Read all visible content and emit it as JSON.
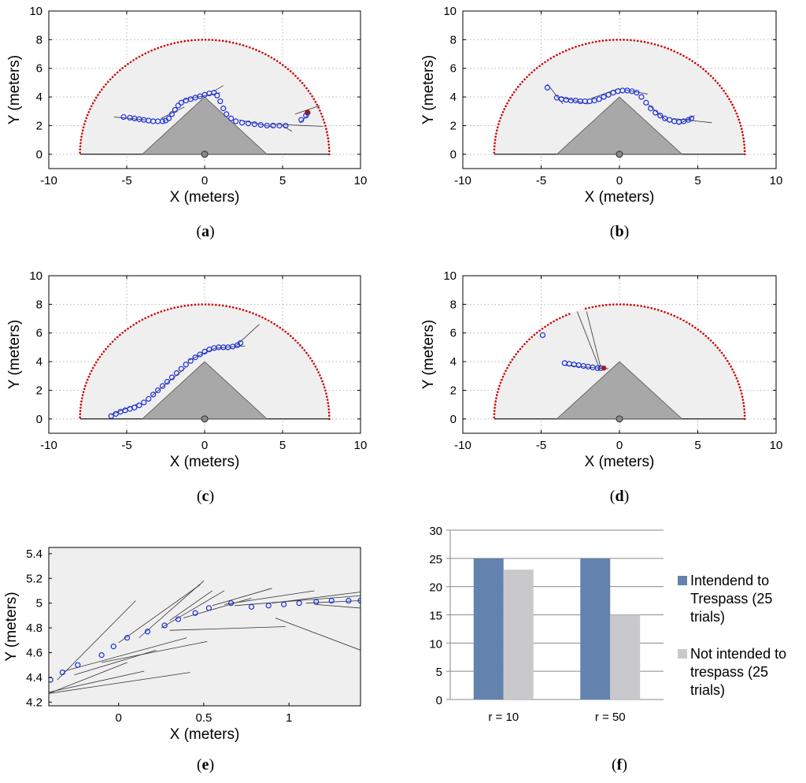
{
  "panels": [
    {
      "id": "a",
      "label": "a",
      "type": "scatter",
      "xlabel": "X (meters)",
      "ylabel": "Y (meters)",
      "xlim": [
        -10,
        10
      ],
      "ylim": [
        -1,
        10
      ],
      "xticks": [
        -10,
        -5,
        0,
        5,
        10
      ],
      "yticks": [
        0,
        2,
        4,
        6,
        8,
        10
      ],
      "sensor_radius": 8,
      "obstacle": [
        [
          -4,
          0
        ],
        [
          0,
          4
        ],
        [
          4,
          0
        ]
      ],
      "points": [
        [
          -5.2,
          2.6
        ],
        [
          -4.8,
          2.55
        ],
        [
          -4.5,
          2.5
        ],
        [
          -4.2,
          2.45
        ],
        [
          -3.9,
          2.4
        ],
        [
          -3.6,
          2.35
        ],
        [
          -3.3,
          2.3
        ],
        [
          -3.0,
          2.3
        ],
        [
          -2.7,
          2.3
        ],
        [
          -2.5,
          2.35
        ],
        [
          -2.3,
          2.5
        ],
        [
          -2.1,
          2.8
        ],
        [
          -1.9,
          3.1
        ],
        [
          -1.7,
          3.4
        ],
        [
          -1.5,
          3.6
        ],
        [
          -1.2,
          3.75
        ],
        [
          -0.9,
          3.85
        ],
        [
          -0.6,
          3.95
        ],
        [
          -0.3,
          4.05
        ],
        [
          0.0,
          4.15
        ],
        [
          0.3,
          4.25
        ],
        [
          0.6,
          4.3
        ],
        [
          0.8,
          4.1
        ],
        [
          1.0,
          3.7
        ],
        [
          1.2,
          3.2
        ],
        [
          1.4,
          2.8
        ],
        [
          1.7,
          2.5
        ],
        [
          2.0,
          2.3
        ],
        [
          2.4,
          2.2
        ],
        [
          2.8,
          2.15
        ],
        [
          3.2,
          2.1
        ],
        [
          3.6,
          2.05
        ],
        [
          4.0,
          2.0
        ],
        [
          4.4,
          2.0
        ],
        [
          4.8,
          2.0
        ],
        [
          5.2,
          2.0
        ],
        [
          6.2,
          2.4
        ],
        [
          6.5,
          2.7
        ],
        [
          6.6,
          2.9
        ]
      ],
      "vectors": [
        [
          [
            -5.8,
            2.6
          ],
          [
            -3.8,
            2.4
          ]
        ],
        [
          [
            -2.8,
            2.5
          ],
          [
            -1.3,
            3.3
          ]
        ],
        [
          [
            -1.4,
            3.8
          ],
          [
            1.0,
            4.3
          ]
        ],
        [
          [
            0.6,
            4.4
          ],
          [
            1.2,
            4.8
          ]
        ],
        [
          [
            2.2,
            2.4
          ],
          [
            4.4,
            1.9
          ]
        ],
        [
          [
            4.2,
            2.1
          ],
          [
            7.6,
            1.95
          ]
        ],
        [
          [
            5.0,
            2.0
          ],
          [
            5.6,
            1.6
          ]
        ],
        [
          [
            5.8,
            2.8
          ],
          [
            7.4,
            3.4
          ]
        ],
        [
          [
            6.1,
            2.2
          ],
          [
            6.8,
            2.9
          ]
        ]
      ],
      "end_marker": [
        6.6,
        2.95
      ],
      "missing_arc": []
    },
    {
      "id": "b",
      "label": "b",
      "type": "scatter",
      "xlabel": "X (meters)",
      "ylabel": "Y (meters)",
      "xlim": [
        -10,
        10
      ],
      "ylim": [
        -1,
        10
      ],
      "xticks": [
        -10,
        -5,
        0,
        5,
        10
      ],
      "yticks": [
        0,
        2,
        4,
        6,
        8,
        10
      ],
      "sensor_radius": 8,
      "obstacle": [
        [
          -4,
          0
        ],
        [
          0,
          4
        ],
        [
          4,
          0
        ]
      ],
      "points": [
        [
          -4.6,
          4.65
        ],
        [
          -4.0,
          3.95
        ],
        [
          -3.7,
          3.85
        ],
        [
          -3.4,
          3.8
        ],
        [
          -3.1,
          3.75
        ],
        [
          -2.8,
          3.75
        ],
        [
          -2.5,
          3.7
        ],
        [
          -2.2,
          3.7
        ],
        [
          -1.9,
          3.7
        ],
        [
          -1.6,
          3.75
        ],
        [
          -1.3,
          3.85
        ],
        [
          -1.0,
          4.0
        ],
        [
          -0.7,
          4.15
        ],
        [
          -0.4,
          4.3
        ],
        [
          -0.1,
          4.4
        ],
        [
          0.2,
          4.45
        ],
        [
          0.5,
          4.45
        ],
        [
          0.8,
          4.4
        ],
        [
          1.1,
          4.3
        ],
        [
          1.4,
          4.0
        ],
        [
          1.7,
          3.6
        ],
        [
          2.0,
          3.2
        ],
        [
          2.3,
          2.9
        ],
        [
          2.6,
          2.7
        ],
        [
          2.9,
          2.5
        ],
        [
          3.2,
          2.4
        ],
        [
          3.5,
          2.3
        ],
        [
          3.8,
          2.25
        ],
        [
          4.1,
          2.3
        ],
        [
          4.4,
          2.4
        ],
        [
          4.6,
          2.5
        ]
      ],
      "vectors": [
        [
          [
            -4.6,
            4.9
          ],
          [
            -3.6,
            3.5
          ]
        ],
        [
          [
            -3.8,
            4.0
          ],
          [
            -2.0,
            3.5
          ]
        ],
        [
          [
            -1.8,
            3.9
          ],
          [
            0.0,
            4.6
          ]
        ],
        [
          [
            0.3,
            4.5
          ],
          [
            1.8,
            4.2
          ]
        ],
        [
          [
            1.8,
            3.5
          ],
          [
            3.2,
            2.2
          ]
        ],
        [
          [
            3.4,
            2.5
          ],
          [
            5.9,
            2.2
          ]
        ],
        [
          [
            3.8,
            2.1
          ],
          [
            4.8,
            2.7
          ]
        ]
      ],
      "end_marker": [],
      "missing_arc": []
    },
    {
      "id": "c",
      "label": "c",
      "type": "scatter",
      "xlabel": "X (meters)",
      "ylabel": "Y (meters)",
      "xlim": [
        -10,
        10
      ],
      "ylim": [
        -1,
        10
      ],
      "xticks": [
        -10,
        -5,
        0,
        5,
        10
      ],
      "yticks": [
        0,
        2,
        4,
        6,
        8,
        10
      ],
      "sensor_radius": 8,
      "obstacle": [
        [
          -4,
          0
        ],
        [
          0,
          4
        ],
        [
          4,
          0
        ]
      ],
      "points": [
        [
          -6.0,
          0.2
        ],
        [
          -5.7,
          0.35
        ],
        [
          -5.4,
          0.5
        ],
        [
          -5.1,
          0.6
        ],
        [
          -4.8,
          0.7
        ],
        [
          -4.5,
          0.8
        ],
        [
          -4.2,
          0.95
        ],
        [
          -3.9,
          1.15
        ],
        [
          -3.6,
          1.4
        ],
        [
          -3.3,
          1.7
        ],
        [
          -3.0,
          2.0
        ],
        [
          -2.7,
          2.3
        ],
        [
          -2.4,
          2.6
        ],
        [
          -2.1,
          2.9
        ],
        [
          -1.8,
          3.2
        ],
        [
          -1.5,
          3.5
        ],
        [
          -1.2,
          3.8
        ],
        [
          -0.9,
          4.05
        ],
        [
          -0.6,
          4.3
        ],
        [
          -0.3,
          4.5
        ],
        [
          0.0,
          4.7
        ],
        [
          0.3,
          4.85
        ],
        [
          0.6,
          4.95
        ],
        [
          0.9,
          5.0
        ],
        [
          1.2,
          5.0
        ],
        [
          1.5,
          5.0
        ],
        [
          1.8,
          5.05
        ],
        [
          2.1,
          5.15
        ],
        [
          2.3,
          5.3
        ]
      ],
      "vectors": [
        [
          [
            -6.0,
            0.3
          ],
          [
            -4.2,
            1.1
          ]
        ],
        [
          [
            -3.4,
            1.6
          ],
          [
            -1.2,
            3.6
          ]
        ],
        [
          [
            -1.0,
            4.1
          ],
          [
            0.8,
            5.0
          ]
        ],
        [
          [
            0.8,
            4.95
          ],
          [
            2.6,
            5.1
          ]
        ],
        [
          [
            2.0,
            5.1
          ],
          [
            3.5,
            6.6
          ]
        ]
      ],
      "end_marker": [],
      "missing_arc": []
    },
    {
      "id": "d",
      "label": "d",
      "type": "scatter",
      "xlabel": "X (meters)",
      "ylabel": "Y (meters)",
      "xlim": [
        -10,
        10
      ],
      "ylim": [
        -1,
        10
      ],
      "xticks": [
        -10,
        -5,
        0,
        5,
        10
      ],
      "yticks": [
        0,
        2,
        4,
        6,
        8,
        10
      ],
      "sensor_radius": 8,
      "obstacle": [
        [
          -4,
          0
        ],
        [
          0,
          4
        ],
        [
          4,
          0
        ]
      ],
      "points": [
        [
          -4.9,
          5.85
        ],
        [
          -3.5,
          3.9
        ],
        [
          -3.2,
          3.85
        ],
        [
          -2.9,
          3.8
        ],
        [
          -2.6,
          3.75
        ],
        [
          -2.3,
          3.7
        ],
        [
          -2.0,
          3.65
        ],
        [
          -1.7,
          3.6
        ],
        [
          -1.4,
          3.55
        ],
        [
          -1.2,
          3.55
        ]
      ],
      "vectors": [
        [
          [
            -2.7,
            7.5
          ],
          [
            -1.3,
            3.6
          ]
        ],
        [
          [
            -2.1,
            7.5
          ],
          [
            -1.2,
            3.6
          ]
        ],
        [
          [
            -3.6,
            3.75
          ],
          [
            -0.7,
            3.5
          ]
        ]
      ],
      "end_marker": [
        -1.0,
        3.55
      ],
      "missing_arc": [
        106,
        112
      ]
    },
    {
      "id": "e",
      "label": "e",
      "type": "scatter",
      "xlabel": "X (meters)",
      "ylabel": "Y (meters)",
      "xlim": [
        -0.41,
        1.42
      ],
      "ylim": [
        4.17,
        5.45
      ],
      "xticks": [
        0,
        0.5,
        1
      ],
      "xticklabels": [
        "0",
        "0.5",
        "1"
      ],
      "yticks": [
        4.2,
        4.4,
        4.6,
        4.8,
        5.0,
        5.2,
        5.4
      ],
      "yticklabels": [
        "4.2",
        "4.4",
        "4.6",
        "4.8",
        "5",
        "5.2",
        "5.4"
      ],
      "points": [
        [
          -0.4,
          4.38
        ],
        [
          -0.33,
          4.44
        ],
        [
          -0.24,
          4.5
        ],
        [
          -0.1,
          4.58
        ],
        [
          -0.03,
          4.65
        ],
        [
          0.05,
          4.72
        ],
        [
          0.17,
          4.77
        ],
        [
          0.27,
          4.82
        ],
        [
          0.35,
          4.87
        ],
        [
          0.45,
          4.92
        ],
        [
          0.53,
          4.96
        ],
        [
          0.66,
          5.0
        ],
        [
          0.78,
          4.97
        ],
        [
          0.88,
          4.98
        ],
        [
          0.97,
          4.99
        ],
        [
          1.06,
          5.0
        ],
        [
          1.16,
          5.01
        ],
        [
          1.25,
          5.02
        ],
        [
          1.35,
          5.02
        ],
        [
          1.42,
          5.02
        ]
      ],
      "vectors": [
        [
          [
            -0.41,
            4.27
          ],
          [
            0.05,
            4.52
          ]
        ],
        [
          [
            -0.41,
            4.28
          ],
          [
            0.15,
            4.45
          ]
        ],
        [
          [
            -0.41,
            4.27
          ],
          [
            0.42,
            4.44
          ]
        ],
        [
          [
            -0.36,
            4.38
          ],
          [
            0.1,
            5.02
          ]
        ],
        [
          [
            -0.32,
            4.45
          ],
          [
            0.4,
            4.72
          ]
        ],
        [
          [
            -0.26,
            4.42
          ],
          [
            0.22,
            4.62
          ]
        ],
        [
          [
            -0.1,
            4.52
          ],
          [
            0.52,
            4.69
          ]
        ],
        [
          [
            0.0,
            4.68
          ],
          [
            0.48,
            5.15
          ]
        ],
        [
          [
            0.12,
            4.72
          ],
          [
            0.5,
            5.18
          ]
        ],
        [
          [
            0.25,
            4.8
          ],
          [
            0.62,
            5.1
          ]
        ],
        [
          [
            0.3,
            4.78
          ],
          [
            0.98,
            4.81
          ]
        ],
        [
          [
            0.3,
            4.86
          ],
          [
            0.55,
            5.1
          ]
        ],
        [
          [
            0.38,
            4.88
          ],
          [
            0.78,
            5.04
          ]
        ],
        [
          [
            0.55,
            4.98
          ],
          [
            0.9,
            5.12
          ]
        ],
        [
          [
            0.62,
            4.99
          ],
          [
            1.15,
            5.1
          ]
        ],
        [
          [
            0.68,
            4.98
          ],
          [
            1.42,
            5.06
          ]
        ],
        [
          [
            0.9,
            5.0
          ],
          [
            1.42,
            5.09
          ]
        ],
        [
          [
            1.1,
            5.0
          ],
          [
            1.42,
            5.02
          ]
        ],
        [
          [
            1.15,
            4.99
          ],
          [
            1.42,
            4.96
          ]
        ],
        [
          [
            0.92,
            4.88
          ],
          [
            1.42,
            4.62
          ]
        ]
      ],
      "end_marker": [],
      "missing_arc": []
    }
  ],
  "chart_data": [
    {
      "type": "scatter",
      "panel": "a",
      "title": "",
      "xlabel": "X (meters)",
      "ylabel": "Y (meters)",
      "xlim": [
        -10,
        10
      ],
      "ylim": [
        -1,
        10
      ]
    },
    {
      "type": "scatter",
      "panel": "b",
      "title": "",
      "xlabel": "X (meters)",
      "ylabel": "Y (meters)",
      "xlim": [
        -10,
        10
      ],
      "ylim": [
        -1,
        10
      ]
    },
    {
      "type": "scatter",
      "panel": "c",
      "title": "",
      "xlabel": "X (meters)",
      "ylabel": "Y (meters)",
      "xlim": [
        -10,
        10
      ],
      "ylim": [
        -1,
        10
      ]
    },
    {
      "type": "scatter",
      "panel": "d",
      "title": "",
      "xlabel": "X (meters)",
      "ylabel": "Y (meters)",
      "xlim": [
        -10,
        10
      ],
      "ylim": [
        -1,
        10
      ]
    },
    {
      "type": "scatter",
      "panel": "e",
      "title": "",
      "xlabel": "X (meters)",
      "ylabel": "Y (meters)",
      "xlim": [
        -0.41,
        1.42
      ],
      "ylim": [
        4.17,
        5.45
      ]
    },
    {
      "type": "bar",
      "panel": "f",
      "title": "",
      "xlabel": "",
      "ylabel": "",
      "categories": [
        "r = 10",
        "r = 50"
      ],
      "series": [
        {
          "name": "Intendend to Trespass (25 trials)",
          "values": [
            25,
            25
          ],
          "color": "#6383ae"
        },
        {
          "name": "Not intended to trespass (25 trials)",
          "values": [
            23,
            15
          ],
          "color": "#c9c9cc"
        }
      ],
      "ylim": [
        0,
        30
      ],
      "yticks": [
        0,
        5,
        10,
        15,
        20,
        25,
        30
      ],
      "legend_position": "right",
      "legend_lines": [
        [
          "Intendend to",
          "Trespass (25",
          "trials)"
        ],
        [
          "Not intended to",
          "trespass (25",
          "trials)"
        ]
      ]
    }
  ],
  "bar_panel_label": "f",
  "colors": {
    "sensor_area": "#efefef",
    "sensor_arc": "#cc0000",
    "obstacle": "#a8a8a8",
    "points": "#1a2ee0",
    "vectors": "#333333",
    "grid": "#b5b5b5",
    "end_marker": "#a01818"
  }
}
